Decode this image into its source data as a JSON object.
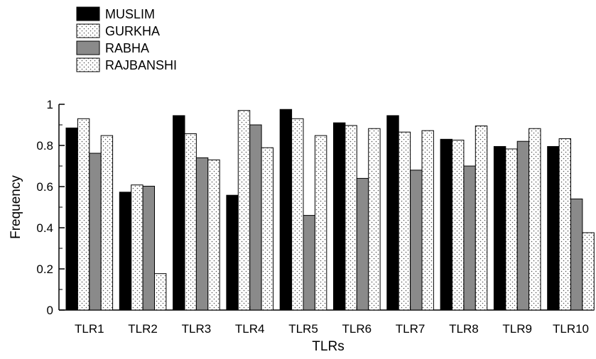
{
  "chart_data": {
    "type": "bar",
    "title": "",
    "xlabel": "TLRs",
    "ylabel": "Frequency",
    "ylim": [
      0,
      1
    ],
    "yticks": [
      0,
      0.2,
      0.4,
      0.6,
      0.8,
      1
    ],
    "ytick_labels": [
      "0",
      "0.2",
      "0.4",
      "0.6",
      "0.8",
      "1"
    ],
    "grid": false,
    "legend_position": "top-left",
    "categories": [
      "TLR1",
      "TLR2",
      "TLR3",
      "TLR4",
      "TLR5",
      "TLR6",
      "TLR7",
      "TLR8",
      "TLR9",
      "TLR10"
    ],
    "series": [
      {
        "name": "MUSLIM",
        "pattern": "solid-black",
        "values": [
          0.885,
          0.573,
          0.945,
          0.558,
          0.975,
          0.91,
          0.945,
          0.83,
          0.795,
          0.795
        ]
      },
      {
        "name": "GURKHA",
        "pattern": "dotted-white",
        "values": [
          0.93,
          0.608,
          0.857,
          0.97,
          0.93,
          0.897,
          0.865,
          0.826,
          0.783,
          0.833
        ]
      },
      {
        "name": "RABHA",
        "pattern": "solid-gray",
        "values": [
          0.762,
          0.602,
          0.74,
          0.9,
          0.46,
          0.64,
          0.68,
          0.7,
          0.82,
          0.54
        ]
      },
      {
        "name": "RAJBANSHI",
        "pattern": "dotted-white",
        "values": [
          0.848,
          0.177,
          0.73,
          0.789,
          0.848,
          0.882,
          0.872,
          0.895,
          0.882,
          0.376
        ]
      }
    ]
  },
  "colors": {
    "MUSLIM": "#000000",
    "GURKHA": "#ffffff",
    "RABHA": "#8a8a8a",
    "RAJBANSHI": "#ffffff",
    "dots": "#555555"
  }
}
